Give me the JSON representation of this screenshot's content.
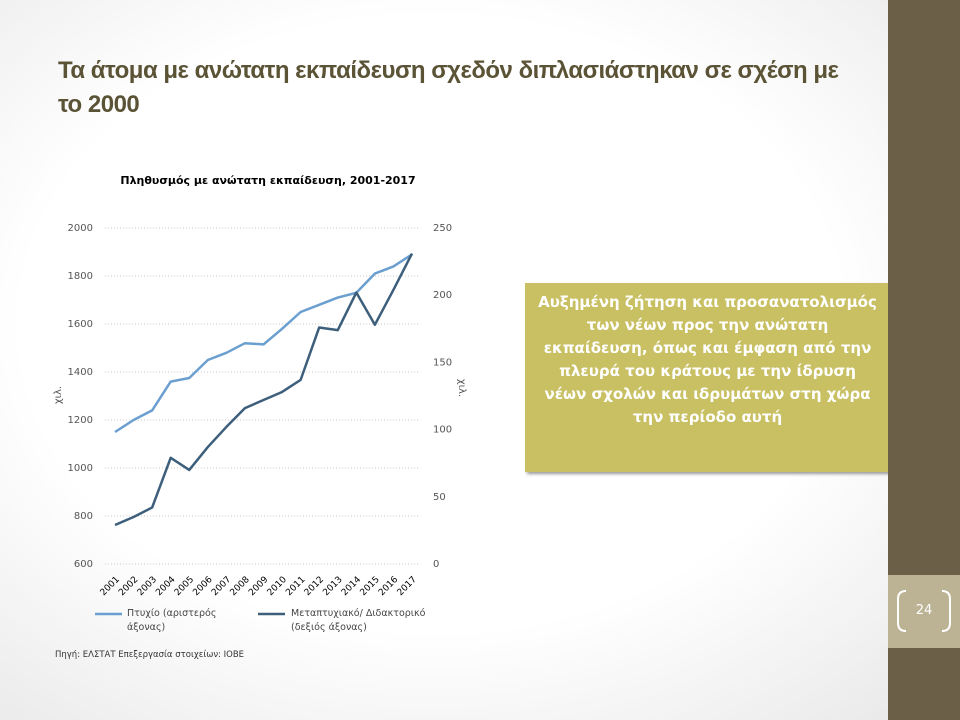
{
  "title": "Τα άτομα με ανώτατη εκπαίδευση σχεδόν διπλασιάστηκαν σε σχέση με το 2000",
  "callout": "Αυξημένη ζήτηση και προσανατολισμός των νέων προς την ανώτατη εκπαίδευση, όπως και έμφαση από την πλευρά του κράτους με την ίδρυση νέων σχολών και ιδρυμάτων στη χώρα την περίοδο αυτή",
  "page_number": "24",
  "source": "Πηγή: ΕΛΣΤΑΤ Επεξεργασία στοιχείων: ΙΟΒΕ",
  "chart_data": {
    "type": "line",
    "title": "Πληθυσμός με ανώτατη εκπαίδευση, 2001-2017",
    "categories": [
      "2001",
      "2002",
      "2003",
      "2004",
      "2005",
      "2006",
      "2007",
      "2008",
      "2009",
      "2010",
      "2011",
      "2012",
      "2013",
      "2014",
      "2015",
      "2016",
      "2017"
    ],
    "series": [
      {
        "name": "Πτυχίο (αριστερός άξονας)",
        "color": "#6a9fd0",
        "values": [
          1150,
          1200,
          1240,
          1360,
          1375,
          1450,
          1480,
          1520,
          1515,
          1580,
          1650,
          1680,
          1710,
          1730,
          1810,
          1840,
          1890
        ]
      },
      {
        "name": "Μεταπτυχιακό/ Διδακτορικό (δεξιός άξονας)",
        "color": "#3d5f7c",
        "axis": "y2",
        "values": [
          29,
          35,
          42,
          79,
          70,
          87,
          102,
          116,
          122,
          128,
          137,
          176,
          174,
          202,
          178,
          204,
          231
        ]
      }
    ],
    "y_label": "χιλ.",
    "y2_label": "χιλ.",
    "ylim": [
      600,
      2000
    ],
    "yticks": [
      600,
      800,
      1000,
      1200,
      1400,
      1600,
      1800,
      2000
    ],
    "y2lim": [
      0,
      250
    ],
    "y2ticks": [
      0,
      50,
      100,
      150,
      200,
      250
    ],
    "grid": true
  }
}
